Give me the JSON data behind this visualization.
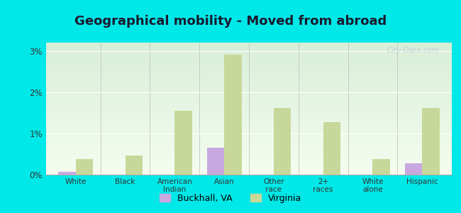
{
  "title": "Geographical mobility - Moved from abroad",
  "categories": [
    "White",
    "Black",
    "American\nIndian",
    "Asian",
    "Other\nrace",
    "2+\nraces",
    "White\nalone",
    "Hispanic"
  ],
  "buckhall_values": [
    0.07,
    0.0,
    0.0,
    0.65,
    0.0,
    0.0,
    0.0,
    0.27
  ],
  "virginia_values": [
    0.38,
    0.47,
    1.55,
    2.9,
    1.62,
    1.27,
    0.38,
    1.62
  ],
  "buckhall_color": "#c9a8e0",
  "virginia_color": "#c8d89a",
  "background_top": "#d8efd8",
  "background_bottom": "#f5fdf0",
  "outer_background": "#00e8e8",
  "ylim": [
    0,
    3.2
  ],
  "yticks": [
    0,
    1,
    2,
    3
  ],
  "ytick_labels": [
    "0%",
    "1%",
    "2%",
    "3%"
  ],
  "bar_width": 0.35,
  "legend_buckhall": "Buckhall, VA",
  "legend_virginia": "Virginia",
  "title_fontsize": 13,
  "watermark": "City-Data.com"
}
